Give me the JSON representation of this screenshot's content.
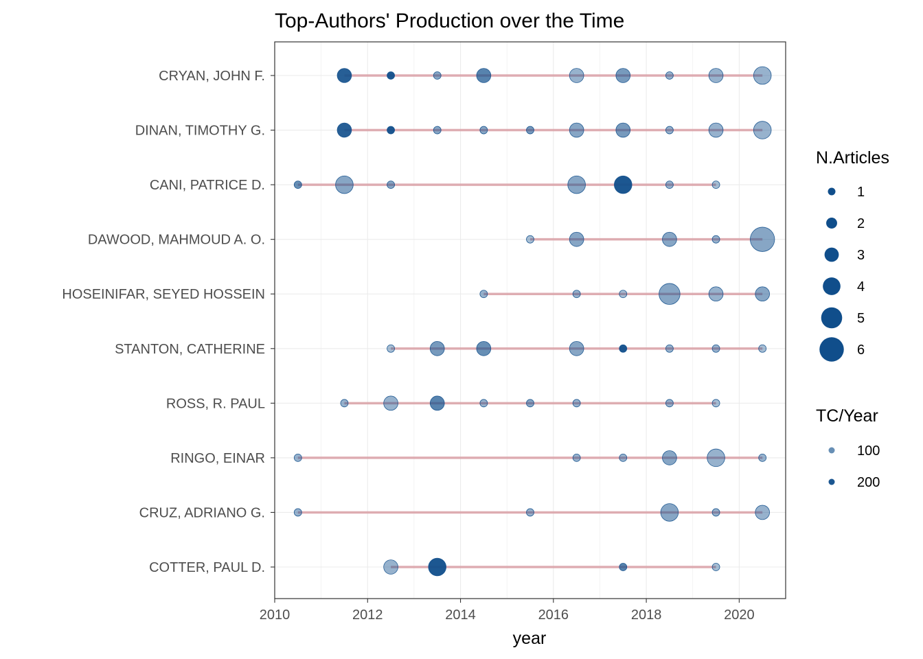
{
  "chart_data": {
    "type": "scatter",
    "title": "Top-Authors' Production over the Time",
    "xlabel": "year",
    "ylabel": "",
    "xlim": [
      2010,
      2021
    ],
    "x_ticks": [
      "2010",
      "2012",
      "2014",
      "2016",
      "2018",
      "2020"
    ],
    "grid": true,
    "legend_position": "right",
    "colors": {
      "point": "#104e8b",
      "segment": "#d9a0a6",
      "grid": "#ebebeb",
      "panel_border": "#333333"
    },
    "authors": [
      {
        "name": "CRYAN, JOHN F.",
        "start": 2011.5,
        "end": 2020.5,
        "points": [
          {
            "year": 2011.5,
            "articles": 3,
            "tc": 180
          },
          {
            "year": 2012.5,
            "articles": 1,
            "tc": 200
          },
          {
            "year": 2013.5,
            "articles": 1,
            "tc": 60
          },
          {
            "year": 2014.5,
            "articles": 3,
            "tc": 120
          },
          {
            "year": 2016.5,
            "articles": 3,
            "tc": 40
          },
          {
            "year": 2017.5,
            "articles": 3,
            "tc": 80
          },
          {
            "year": 2018.5,
            "articles": 1,
            "tc": 40
          },
          {
            "year": 2019.5,
            "articles": 3,
            "tc": 40
          },
          {
            "year": 2020.5,
            "articles": 4,
            "tc": 40
          }
        ]
      },
      {
        "name": "DINAN, TIMOTHY G.",
        "start": 2011.5,
        "end": 2020.5,
        "points": [
          {
            "year": 2011.5,
            "articles": 3,
            "tc": 180
          },
          {
            "year": 2012.5,
            "articles": 1,
            "tc": 200
          },
          {
            "year": 2013.5,
            "articles": 1,
            "tc": 60
          },
          {
            "year": 2014.5,
            "articles": 1,
            "tc": 60
          },
          {
            "year": 2015.5,
            "articles": 1,
            "tc": 80
          },
          {
            "year": 2016.5,
            "articles": 3,
            "tc": 60
          },
          {
            "year": 2017.5,
            "articles": 3,
            "tc": 80
          },
          {
            "year": 2018.5,
            "articles": 1,
            "tc": 40
          },
          {
            "year": 2019.5,
            "articles": 3,
            "tc": 40
          },
          {
            "year": 2020.5,
            "articles": 4,
            "tc": 40
          }
        ]
      },
      {
        "name": "CANI, PATRICE D.",
        "start": 2010.5,
        "end": 2019.5,
        "points": [
          {
            "year": 2010.5,
            "articles": 1,
            "tc": 100
          },
          {
            "year": 2011.5,
            "articles": 4,
            "tc": 60
          },
          {
            "year": 2012.5,
            "articles": 1,
            "tc": 60
          },
          {
            "year": 2016.5,
            "articles": 4,
            "tc": 60
          },
          {
            "year": 2017.5,
            "articles": 4,
            "tc": 280
          },
          {
            "year": 2018.5,
            "articles": 1,
            "tc": 40
          },
          {
            "year": 2019.5,
            "articles": 1,
            "tc": 20
          }
        ]
      },
      {
        "name": "DAWOOD, MAHMOUD A. O.",
        "start": 2015.5,
        "end": 2020.5,
        "points": [
          {
            "year": 2015.5,
            "articles": 1,
            "tc": 20
          },
          {
            "year": 2016.5,
            "articles": 3,
            "tc": 60
          },
          {
            "year": 2018.5,
            "articles": 3,
            "tc": 60
          },
          {
            "year": 2019.5,
            "articles": 1,
            "tc": 40
          },
          {
            "year": 2020.5,
            "articles": 6,
            "tc": 60
          }
        ]
      },
      {
        "name": "HOSEINIFAR, SEYED HOSSEIN",
        "start": 2014.5,
        "end": 2020.5,
        "points": [
          {
            "year": 2014.5,
            "articles": 1,
            "tc": 40
          },
          {
            "year": 2016.5,
            "articles": 1,
            "tc": 40
          },
          {
            "year": 2017.5,
            "articles": 1,
            "tc": 20
          },
          {
            "year": 2018.5,
            "articles": 5,
            "tc": 60
          },
          {
            "year": 2019.5,
            "articles": 3,
            "tc": 40
          },
          {
            "year": 2020.5,
            "articles": 3,
            "tc": 60
          }
        ]
      },
      {
        "name": "STANTON, CATHERINE",
        "start": 2012.5,
        "end": 2020.5,
        "points": [
          {
            "year": 2012.5,
            "articles": 1,
            "tc": 20
          },
          {
            "year": 2013.5,
            "articles": 3,
            "tc": 80
          },
          {
            "year": 2014.5,
            "articles": 3,
            "tc": 100
          },
          {
            "year": 2016.5,
            "articles": 3,
            "tc": 60
          },
          {
            "year": 2017.5,
            "articles": 1,
            "tc": 200
          },
          {
            "year": 2018.5,
            "articles": 1,
            "tc": 40
          },
          {
            "year": 2019.5,
            "articles": 1,
            "tc": 40
          },
          {
            "year": 2020.5,
            "articles": 1,
            "tc": 20
          }
        ]
      },
      {
        "name": "ROSS, R. PAUL",
        "start": 2011.5,
        "end": 2019.5,
        "points": [
          {
            "year": 2011.5,
            "articles": 1,
            "tc": 40
          },
          {
            "year": 2012.5,
            "articles": 3,
            "tc": 40
          },
          {
            "year": 2013.5,
            "articles": 3,
            "tc": 120
          },
          {
            "year": 2014.5,
            "articles": 1,
            "tc": 40
          },
          {
            "year": 2015.5,
            "articles": 1,
            "tc": 60
          },
          {
            "year": 2016.5,
            "articles": 1,
            "tc": 40
          },
          {
            "year": 2018.5,
            "articles": 1,
            "tc": 40
          },
          {
            "year": 2019.5,
            "articles": 1,
            "tc": 20
          }
        ]
      },
      {
        "name": "RINGO, EINAR",
        "start": 2010.5,
        "end": 2020.5,
        "points": [
          {
            "year": 2010.5,
            "articles": 1,
            "tc": 40
          },
          {
            "year": 2016.5,
            "articles": 1,
            "tc": 40
          },
          {
            "year": 2017.5,
            "articles": 1,
            "tc": 40
          },
          {
            "year": 2018.5,
            "articles": 3,
            "tc": 60
          },
          {
            "year": 2019.5,
            "articles": 4,
            "tc": 40
          },
          {
            "year": 2020.5,
            "articles": 1,
            "tc": 40
          }
        ]
      },
      {
        "name": "CRUZ, ADRIANO G.",
        "start": 2010.5,
        "end": 2020.5,
        "points": [
          {
            "year": 2010.5,
            "articles": 1,
            "tc": 40
          },
          {
            "year": 2015.5,
            "articles": 1,
            "tc": 40
          },
          {
            "year": 2018.5,
            "articles": 4,
            "tc": 60
          },
          {
            "year": 2019.5,
            "articles": 1,
            "tc": 40
          },
          {
            "year": 2020.5,
            "articles": 3,
            "tc": 40
          }
        ]
      },
      {
        "name": "COTTER, PAUL D.",
        "start": 2012.5,
        "end": 2019.5,
        "points": [
          {
            "year": 2012.5,
            "articles": 3,
            "tc": 40
          },
          {
            "year": 2013.5,
            "articles": 4,
            "tc": 200
          },
          {
            "year": 2017.5,
            "articles": 1,
            "tc": 120
          },
          {
            "year": 2019.5,
            "articles": 1,
            "tc": 20
          }
        ]
      }
    ],
    "legend": {
      "size_title": "N.Articles",
      "size_labels": [
        "1",
        "2",
        "3",
        "4",
        "5",
        "6"
      ],
      "alpha_title": "TC/Year",
      "alpha_labels": [
        "100",
        "200"
      ],
      "alpha_values": [
        100,
        200
      ]
    }
  }
}
